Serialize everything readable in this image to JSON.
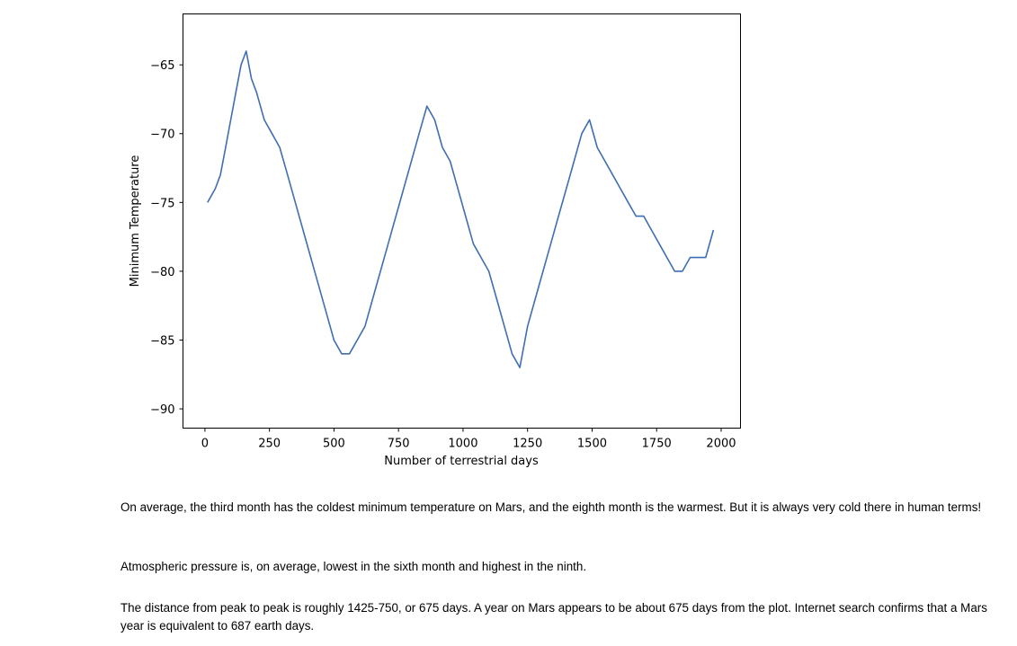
{
  "chart_data": {
    "type": "line",
    "title": "",
    "xlabel": "Number of terrestrial days",
    "ylabel": "Minimum Temperature",
    "xlim": [
      -85,
      2075
    ],
    "ylim": [
      -91.4,
      -61.3
    ],
    "x_ticks": [
      0,
      250,
      500,
      750,
      1000,
      1250,
      1500,
      1750,
      2000
    ],
    "x_tick_labels": [
      "0",
      "250",
      "500",
      "750",
      "1000",
      "1250",
      "1500",
      "1750",
      "2000"
    ],
    "y_ticks": [
      -65,
      -70,
      -75,
      -80,
      -85,
      -90
    ],
    "y_tick_labels": [
      "−65",
      "−70",
      "−75",
      "−80",
      "−85",
      "−90"
    ],
    "line_color": "#3f6fb0",
    "grid": false,
    "series": [
      {
        "name": "min_temp",
        "x": [
          10,
          40,
          60,
          80,
          100,
          120,
          140,
          160,
          180,
          200,
          230,
          260,
          290,
          320,
          350,
          380,
          410,
          440,
          470,
          500,
          530,
          560,
          590,
          620,
          650,
          680,
          710,
          740,
          770,
          800,
          830,
          860,
          890,
          920,
          950,
          980,
          1010,
          1040,
          1070,
          1100,
          1130,
          1160,
          1190,
          1220,
          1250,
          1280,
          1310,
          1340,
          1370,
          1400,
          1430,
          1460,
          1490,
          1520,
          1550,
          1580,
          1610,
          1640,
          1670,
          1700,
          1730,
          1760,
          1790,
          1820,
          1850,
          1880,
          1910,
          1940,
          1970
        ],
        "y": [
          -75,
          -74,
          -73,
          -71,
          -69,
          -67,
          -65,
          -64,
          -66,
          -67,
          -69,
          -70,
          -71,
          -73,
          -75,
          -77,
          -79,
          -81,
          -83,
          -85,
          -86,
          -86,
          -85,
          -84,
          -82,
          -80,
          -78,
          -76,
          -74,
          -72,
          -70,
          -68,
          -69,
          -71,
          -72,
          -74,
          -76,
          -78,
          -79,
          -80,
          -82,
          -84,
          -86,
          -87,
          -84,
          -82,
          -80,
          -78,
          -76,
          -74,
          -72,
          -70,
          -69,
          -71,
          -72,
          -73,
          -74,
          -75,
          -76,
          -76,
          -77,
          -78,
          -79,
          -80,
          -80,
          -79,
          -79,
          -79,
          -77
        ]
      }
    ]
  },
  "text": {
    "paragraph_1": "On average, the third month has the coldest minimum temperature on Mars, and the eighth month is the warmest. But it is always very cold there in human terms!",
    "paragraph_2": "Atmospheric pressure is, on average, lowest in the sixth month and highest in the ninth.",
    "paragraph_3": "The distance from peak to peak is roughly 1425-750, or 675 days. A year on Mars appears to be about 675 days from the plot. Internet search confirms that a Mars year is equivalent to 687 earth days."
  }
}
